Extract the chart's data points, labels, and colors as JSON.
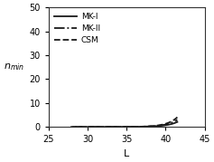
{
  "title": "",
  "xlabel": "L",
  "ylabel": "n_{min}",
  "xlim": [
    25,
    45
  ],
  "ylim": [
    0,
    50
  ],
  "xticks": [
    25,
    30,
    35,
    40,
    45
  ],
  "yticks": [
    0,
    10,
    20,
    30,
    40,
    50
  ],
  "lines": [
    {
      "label": "MK-I",
      "style": "solid",
      "color": "#1a1a1a",
      "lw": 1.3,
      "A": 0.00018,
      "k": 0.72,
      "L0": 28.5
    },
    {
      "label": "MK-II",
      "style": "dashdot",
      "color": "#1a1a1a",
      "lw": 1.3,
      "A": 0.00018,
      "k": 0.72,
      "L0": 28.0
    },
    {
      "label": "CSM",
      "style": "dashed",
      "color": "#1a1a1a",
      "lw": 1.3,
      "A": 0.00015,
      "k": 0.745,
      "L0": 27.8
    }
  ],
  "legend_loc": "upper left",
  "legend_fontsize": 6.5,
  "tick_fontsize": 7,
  "axis_fontsize": 8,
  "background_color": "#ffffff",
  "L_range_start": 25,
  "L_range_end": 41.5
}
